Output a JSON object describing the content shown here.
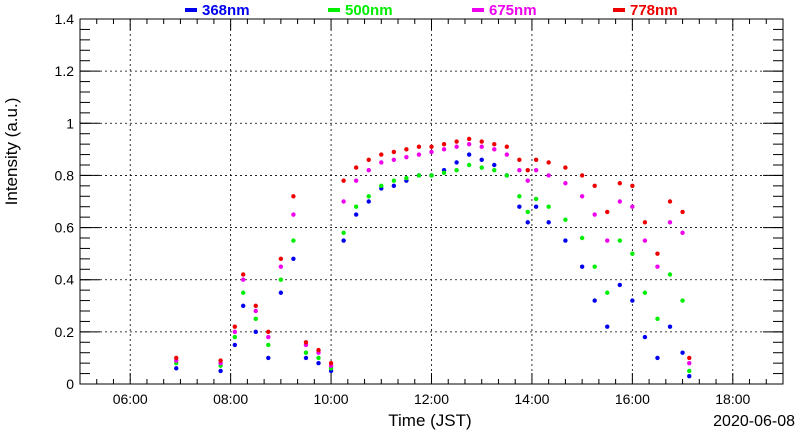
{
  "chart_data": {
    "type": "scatter",
    "xlabel": "Time (JST)",
    "ylabel": "Intensity (a.u.)",
    "date_label": "2020-06-08",
    "xlim": [
      "05:00",
      "19:00"
    ],
    "ylim": [
      0,
      1.4
    ],
    "x_ticks": [
      "06:00",
      "08:00",
      "10:00",
      "12:00",
      "14:00",
      "16:00",
      "18:00"
    ],
    "y_ticks": [
      "0",
      "0.2",
      "0.4",
      "0.6",
      "0.8",
      "1",
      "1.2",
      "1.4"
    ],
    "grid": true,
    "legend_position": "top",
    "series": [
      {
        "name": "368nm",
        "color": "#0000ee",
        "points": [
          [
            "06:55",
            0.06
          ],
          [
            "07:48",
            0.05
          ],
          [
            "08:05",
            0.15
          ],
          [
            "08:15",
            0.3
          ],
          [
            "08:30",
            0.2
          ],
          [
            "08:45",
            0.1
          ],
          [
            "09:00",
            0.35
          ],
          [
            "09:15",
            0.48
          ],
          [
            "09:30",
            0.1
          ],
          [
            "09:45",
            0.08
          ],
          [
            "10:00",
            0.05
          ],
          [
            "10:15",
            0.55
          ],
          [
            "10:30",
            0.65
          ],
          [
            "10:45",
            0.7
          ],
          [
            "11:00",
            0.75
          ],
          [
            "11:15",
            0.76
          ],
          [
            "11:30",
            0.78
          ],
          [
            "11:45",
            0.8
          ],
          [
            "12:00",
            0.8
          ],
          [
            "12:15",
            0.82
          ],
          [
            "12:30",
            0.85
          ],
          [
            "12:45",
            0.88
          ],
          [
            "13:00",
            0.86
          ],
          [
            "13:15",
            0.84
          ],
          [
            "13:30",
            0.8
          ],
          [
            "13:45",
            0.68
          ],
          [
            "13:55",
            0.62
          ],
          [
            "14:05",
            0.68
          ],
          [
            "14:20",
            0.62
          ],
          [
            "14:40",
            0.55
          ],
          [
            "15:00",
            0.45
          ],
          [
            "15:15",
            0.32
          ],
          [
            "15:30",
            0.22
          ],
          [
            "15:45",
            0.38
          ],
          [
            "16:00",
            0.32
          ],
          [
            "16:15",
            0.18
          ],
          [
            "16:30",
            0.1
          ],
          [
            "16:45",
            0.22
          ],
          [
            "17:00",
            0.12
          ],
          [
            "17:08",
            0.03
          ]
        ]
      },
      {
        "name": "500nm",
        "color": "#00ee00",
        "points": [
          [
            "06:55",
            0.08
          ],
          [
            "07:48",
            0.07
          ],
          [
            "08:05",
            0.18
          ],
          [
            "08:15",
            0.35
          ],
          [
            "08:30",
            0.25
          ],
          [
            "08:45",
            0.15
          ],
          [
            "09:00",
            0.4
          ],
          [
            "09:15",
            0.55
          ],
          [
            "09:30",
            0.12
          ],
          [
            "09:45",
            0.1
          ],
          [
            "10:00",
            0.06
          ],
          [
            "10:15",
            0.58
          ],
          [
            "10:30",
            0.68
          ],
          [
            "10:45",
            0.72
          ],
          [
            "11:00",
            0.76
          ],
          [
            "11:15",
            0.78
          ],
          [
            "11:30",
            0.79
          ],
          [
            "11:45",
            0.8
          ],
          [
            "12:00",
            0.8
          ],
          [
            "12:15",
            0.81
          ],
          [
            "12:30",
            0.82
          ],
          [
            "12:45",
            0.84
          ],
          [
            "13:00",
            0.83
          ],
          [
            "13:15",
            0.82
          ],
          [
            "13:30",
            0.8
          ],
          [
            "13:45",
            0.72
          ],
          [
            "13:55",
            0.66
          ],
          [
            "14:05",
            0.71
          ],
          [
            "14:20",
            0.68
          ],
          [
            "14:40",
            0.63
          ],
          [
            "15:00",
            0.56
          ],
          [
            "15:15",
            0.45
          ],
          [
            "15:30",
            0.35
          ],
          [
            "15:45",
            0.55
          ],
          [
            "16:00",
            0.5
          ],
          [
            "16:15",
            0.35
          ],
          [
            "16:30",
            0.25
          ],
          [
            "16:45",
            0.42
          ],
          [
            "17:00",
            0.32
          ],
          [
            "17:08",
            0.05
          ]
        ]
      },
      {
        "name": "675nm",
        "color": "#ee00ee",
        "points": [
          [
            "06:55",
            0.09
          ],
          [
            "07:48",
            0.08
          ],
          [
            "08:05",
            0.2
          ],
          [
            "08:15",
            0.4
          ],
          [
            "08:30",
            0.28
          ],
          [
            "08:45",
            0.18
          ],
          [
            "09:00",
            0.45
          ],
          [
            "09:15",
            0.65
          ],
          [
            "09:30",
            0.15
          ],
          [
            "09:45",
            0.12
          ],
          [
            "10:00",
            0.07
          ],
          [
            "10:15",
            0.7
          ],
          [
            "10:30",
            0.78
          ],
          [
            "10:45",
            0.82
          ],
          [
            "11:00",
            0.85
          ],
          [
            "11:15",
            0.86
          ],
          [
            "11:30",
            0.87
          ],
          [
            "11:45",
            0.88
          ],
          [
            "12:00",
            0.89
          ],
          [
            "12:15",
            0.9
          ],
          [
            "12:30",
            0.91
          ],
          [
            "12:45",
            0.92
          ],
          [
            "13:00",
            0.91
          ],
          [
            "13:15",
            0.9
          ],
          [
            "13:30",
            0.88
          ],
          [
            "13:45",
            0.82
          ],
          [
            "13:55",
            0.78
          ],
          [
            "14:05",
            0.82
          ],
          [
            "14:20",
            0.8
          ],
          [
            "14:40",
            0.77
          ],
          [
            "15:00",
            0.72
          ],
          [
            "15:15",
            0.65
          ],
          [
            "15:30",
            0.55
          ],
          [
            "15:45",
            0.7
          ],
          [
            "16:00",
            0.68
          ],
          [
            "16:15",
            0.55
          ],
          [
            "16:30",
            0.45
          ],
          [
            "16:45",
            0.62
          ],
          [
            "17:00",
            0.58
          ],
          [
            "17:08",
            0.08
          ]
        ]
      },
      {
        "name": "778nm",
        "color": "#ee0000",
        "points": [
          [
            "06:55",
            0.1
          ],
          [
            "07:48",
            0.09
          ],
          [
            "08:05",
            0.22
          ],
          [
            "08:15",
            0.42
          ],
          [
            "08:30",
            0.3
          ],
          [
            "08:45",
            0.2
          ],
          [
            "09:00",
            0.48
          ],
          [
            "09:15",
            0.72
          ],
          [
            "09:30",
            0.16
          ],
          [
            "09:45",
            0.13
          ],
          [
            "10:00",
            0.08
          ],
          [
            "10:15",
            0.78
          ],
          [
            "10:30",
            0.83
          ],
          [
            "10:45",
            0.86
          ],
          [
            "11:00",
            0.88
          ],
          [
            "11:15",
            0.89
          ],
          [
            "11:30",
            0.9
          ],
          [
            "11:45",
            0.91
          ],
          [
            "12:00",
            0.91
          ],
          [
            "12:15",
            0.92
          ],
          [
            "12:30",
            0.93
          ],
          [
            "12:45",
            0.94
          ],
          [
            "13:00",
            0.93
          ],
          [
            "13:15",
            0.92
          ],
          [
            "13:30",
            0.91
          ],
          [
            "13:45",
            0.86
          ],
          [
            "13:55",
            0.82
          ],
          [
            "14:05",
            0.86
          ],
          [
            "14:20",
            0.85
          ],
          [
            "14:40",
            0.83
          ],
          [
            "15:00",
            0.8
          ],
          [
            "15:15",
            0.76
          ],
          [
            "15:30",
            0.66
          ],
          [
            "15:45",
            0.77
          ],
          [
            "16:00",
            0.76
          ],
          [
            "16:15",
            0.62
          ],
          [
            "16:30",
            0.5
          ],
          [
            "16:45",
            0.7
          ],
          [
            "17:00",
            0.66
          ],
          [
            "17:08",
            0.1
          ]
        ]
      }
    ]
  }
}
